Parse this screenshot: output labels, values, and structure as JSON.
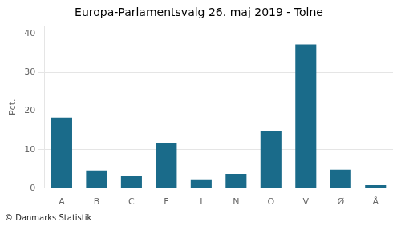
{
  "chart_data": {
    "type": "bar",
    "title": "Europa-Parlamentsvalg 26. maj 2019 - Tolne",
    "categories": [
      "A",
      "B",
      "C",
      "F",
      "I",
      "N",
      "O",
      "V",
      "Ø",
      "Å"
    ],
    "values": [
      18.3,
      4.6,
      3.1,
      11.7,
      2.3,
      3.7,
      14.9,
      37.3,
      4.8,
      0.8
    ],
    "color": "#1a6b8a",
    "ylabel": "Pct.",
    "ylim": [
      0,
      42
    ],
    "yticks": [
      0,
      10,
      20,
      30,
      40
    ],
    "grid": true,
    "annotations": [
      "© Danmarks Statistik"
    ]
  }
}
